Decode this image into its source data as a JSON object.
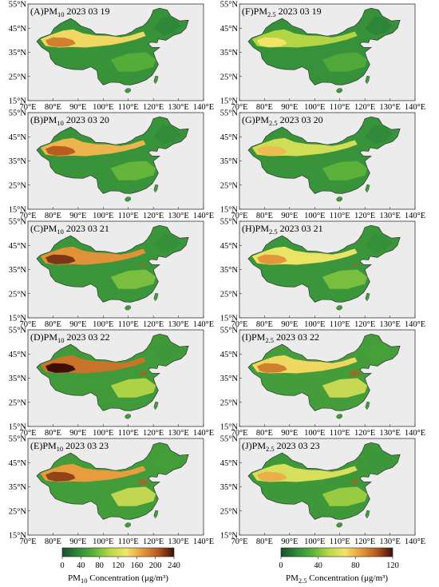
{
  "axes": {
    "lon_ticks": [
      "70°E",
      "80°E",
      "90°E",
      "100°E",
      "110°E",
      "120°E",
      "130°E",
      "140°E"
    ],
    "lat_ticks": [
      "55°N",
      "45°N",
      "35°N",
      "25°N",
      "15°N"
    ]
  },
  "panels": {
    "left": [
      {
        "title_pre": "(A)PM",
        "title_sub": "10",
        "title_post": " 2023 03 19",
        "dust_level": 0.55,
        "east_level": 0.15
      },
      {
        "title_pre": "(B)PM",
        "title_sub": "10",
        "title_post": " 2023 03 20",
        "dust_level": 0.7,
        "east_level": 0.25
      },
      {
        "title_pre": "(C)PM",
        "title_sub": "10",
        "title_post": " 2023 03 21",
        "dust_level": 0.85,
        "east_level": 0.35
      },
      {
        "title_pre": "(D)PM",
        "title_sub": "10",
        "title_post": " 2023 03 22",
        "dust_level": 1.0,
        "east_level": 0.6
      },
      {
        "title_pre": "(E)PM",
        "title_sub": "10",
        "title_post": " 2023 03 23",
        "dust_level": 0.8,
        "east_level": 0.75
      }
    ],
    "right": [
      {
        "title_pre": "(F)PM",
        "title_sub": "2.5",
        "title_post": " 2023 03 19",
        "dust_level": 0.15,
        "east_level": 0.1
      },
      {
        "title_pre": "(G)PM",
        "title_sub": "2.5",
        "title_post": " 2023 03 20",
        "dust_level": 0.3,
        "east_level": 0.2
      },
      {
        "title_pre": "(H)PM",
        "title_sub": "2.5",
        "title_post": " 2023 03 21",
        "dust_level": 0.45,
        "east_level": 0.35
      },
      {
        "title_pre": "(I)PM",
        "title_sub": "2.5",
        "title_post": " 2023 03 22",
        "dust_level": 0.55,
        "east_level": 0.8
      },
      {
        "title_pre": "(J)PM",
        "title_sub": "2.5",
        "title_post": " 2023 03 23",
        "dust_level": 0.35,
        "east_level": 0.5
      }
    ]
  },
  "colorbars": {
    "left": {
      "ticks": [
        "0",
        "40",
        "80",
        "120",
        "160",
        "200",
        "240"
      ],
      "label_pre": "PM",
      "label_sub": "10",
      "label_post": " Concentration (μg/m³)"
    },
    "right": {
      "ticks": [
        "0",
        "40",
        "80",
        "120"
      ],
      "label_pre": "PM",
      "label_sub": "2.5",
      "label_post": " Concentration (μg/m³)"
    }
  },
  "colors": {
    "background": "#ececec",
    "scale": [
      "#1b4d2a",
      "#2f8a3a",
      "#5cb43a",
      "#b9d847",
      "#f2e56a",
      "#e79a3c",
      "#b75a1f",
      "#3d0f06"
    ]
  }
}
